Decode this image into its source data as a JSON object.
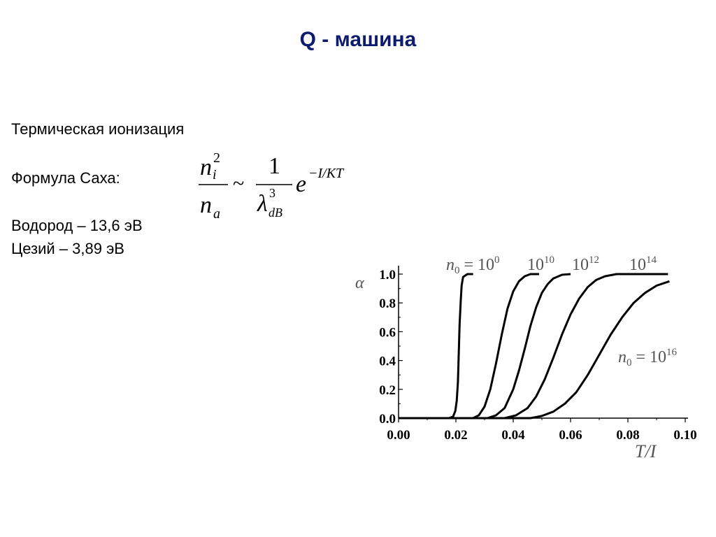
{
  "slide": {
    "title": "Q - машина",
    "lines": {
      "thermal": "Термическая ионизация",
      "saha_label": "Формула Саха:",
      "hydrogen": "Водород – 13,6 эВ",
      "cesium": "Цезий – 3,89 эВ"
    },
    "formula": {
      "num_base": "n",
      "num_sub": "i",
      "num_sup": "2",
      "den_base": "n",
      "den_sub": "a",
      "tilde": "~",
      "one": "1",
      "lambda": "λ",
      "lambda_sub": "dB",
      "lambda_sup": "3",
      "exp_base": "e",
      "exp_power": "−I/KT"
    }
  },
  "chart_data": {
    "type": "line",
    "title": "",
    "xlabel": "T/I",
    "ylabel": "α",
    "xlim": [
      0,
      0.1
    ],
    "ylim": [
      0,
      1.0
    ],
    "x_ticks": [
      "0.00",
      "0.02",
      "0.04",
      "0.06",
      "0.08",
      "0.10"
    ],
    "y_ticks": [
      "0.0",
      "0.2",
      "0.4",
      "0.6",
      "0.8",
      "1.0"
    ],
    "grid": false,
    "series_labels": [
      {
        "prefix": "n",
        "sub": "0",
        "eq": " = ",
        "base": "10",
        "exp": "0"
      },
      {
        "prefix": "",
        "sub": "",
        "eq": "",
        "base": "10",
        "exp": "10"
      },
      {
        "prefix": "",
        "sub": "",
        "eq": "",
        "base": "10",
        "exp": "12"
      },
      {
        "prefix": "",
        "sub": "",
        "eq": "",
        "base": "10",
        "exp": "14"
      },
      {
        "prefix": "n",
        "sub": "0",
        "eq": " = ",
        "base": "10",
        "exp": "16"
      }
    ],
    "series": [
      {
        "name": "n0 = 10^0",
        "x": [
          0.0,
          0.0175,
          0.019,
          0.0198,
          0.0203,
          0.0207,
          0.021,
          0.0213,
          0.0217,
          0.022,
          0.0225,
          0.024,
          0.026
        ],
        "y": [
          0.0,
          0.0,
          0.01,
          0.05,
          0.12,
          0.25,
          0.45,
          0.65,
          0.82,
          0.92,
          0.98,
          1.0,
          1.0
        ]
      },
      {
        "name": "10^10",
        "x": [
          0.0,
          0.026,
          0.028,
          0.03,
          0.032,
          0.034,
          0.036,
          0.038,
          0.04,
          0.042,
          0.044,
          0.046,
          0.049
        ],
        "y": [
          0.0,
          0.0,
          0.02,
          0.08,
          0.2,
          0.38,
          0.58,
          0.76,
          0.88,
          0.95,
          0.985,
          1.0,
          1.0
        ]
      },
      {
        "name": "10^12",
        "x": [
          0.0,
          0.031,
          0.034,
          0.037,
          0.04,
          0.042,
          0.044,
          0.046,
          0.048,
          0.05,
          0.052,
          0.054,
          0.057,
          0.06
        ],
        "y": [
          0.0,
          0.0,
          0.02,
          0.07,
          0.2,
          0.33,
          0.48,
          0.64,
          0.77,
          0.87,
          0.93,
          0.97,
          0.995,
          1.0
        ]
      },
      {
        "name": "10^14",
        "x": [
          0.0,
          0.037,
          0.041,
          0.045,
          0.048,
          0.051,
          0.054,
          0.057,
          0.06,
          0.063,
          0.066,
          0.069,
          0.072,
          0.076,
          0.094
        ],
        "y": [
          0.0,
          0.0,
          0.02,
          0.07,
          0.15,
          0.27,
          0.42,
          0.58,
          0.72,
          0.83,
          0.91,
          0.96,
          0.985,
          1.0,
          1.0
        ]
      },
      {
        "name": "n0 = 10^16",
        "x": [
          0.0,
          0.046,
          0.05,
          0.054,
          0.058,
          0.062,
          0.066,
          0.07,
          0.074,
          0.078,
          0.082,
          0.086,
          0.09,
          0.0945
        ],
        "y": [
          0.0,
          0.0,
          0.015,
          0.045,
          0.1,
          0.18,
          0.3,
          0.44,
          0.58,
          0.7,
          0.8,
          0.87,
          0.92,
          0.95
        ]
      }
    ]
  }
}
